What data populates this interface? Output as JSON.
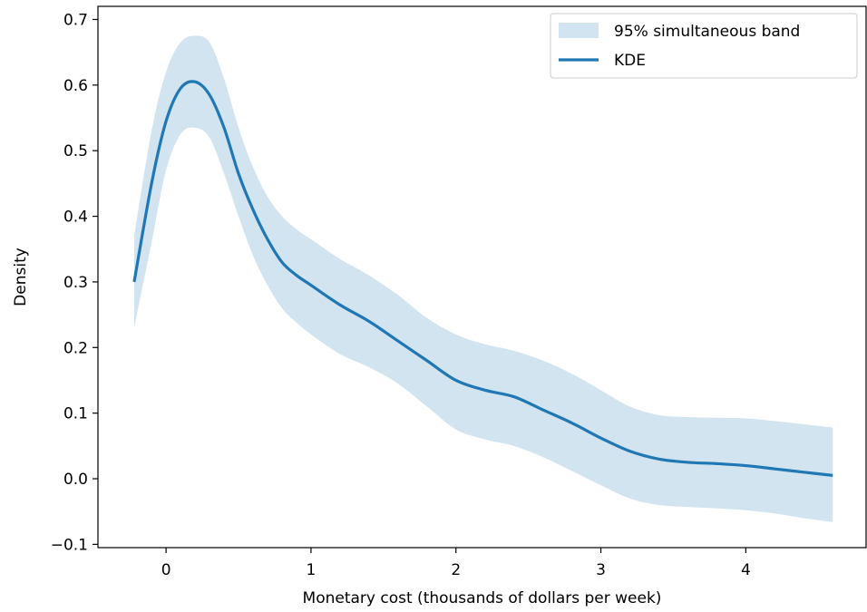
{
  "chart_data": {
    "type": "line",
    "title": "",
    "xlabel": "Monetary cost (thousands of dollars per week)",
    "ylabel": "Density",
    "xlim": [
      -0.47,
      4.83
    ],
    "ylim": [
      -0.105,
      0.72
    ],
    "x_ticks": [
      0,
      1,
      2,
      3,
      4
    ],
    "x_tick_labels": [
      "0",
      "1",
      "2",
      "3",
      "4"
    ],
    "y_ticks": [
      -0.1,
      0.0,
      0.1,
      0.2,
      0.3,
      0.4,
      0.5,
      0.6,
      0.7
    ],
    "y_tick_labels": [
      "−0.1",
      "0.0",
      "0.1",
      "0.2",
      "0.3",
      "0.4",
      "0.5",
      "0.6",
      "0.7"
    ],
    "grid": false,
    "legend_position": "top-right",
    "colors": {
      "line": "#1f77b4",
      "band": "#1f77b4",
      "band_opacity": 0.2
    },
    "series": [
      {
        "name": "KDE",
        "kind": "line",
        "x": [
          -0.22,
          -0.1,
          0.0,
          0.1,
          0.2,
          0.3,
          0.4,
          0.5,
          0.6,
          0.7,
          0.8,
          0.9,
          1.0,
          1.2,
          1.4,
          1.6,
          1.8,
          2.0,
          2.2,
          2.4,
          2.6,
          2.8,
          3.0,
          3.2,
          3.4,
          3.6,
          3.8,
          4.0,
          4.2,
          4.4,
          4.6
        ],
        "y": [
          0.3,
          0.45,
          0.545,
          0.595,
          0.605,
          0.585,
          0.535,
          0.465,
          0.41,
          0.365,
          0.33,
          0.31,
          0.295,
          0.265,
          0.24,
          0.21,
          0.18,
          0.15,
          0.135,
          0.125,
          0.105,
          0.085,
          0.062,
          0.042,
          0.03,
          0.025,
          0.023,
          0.02,
          0.015,
          0.01,
          0.005
        ]
      },
      {
        "name": "95% simultaneous band",
        "kind": "band",
        "x": [
          -0.22,
          -0.1,
          0.0,
          0.1,
          0.2,
          0.3,
          0.4,
          0.5,
          0.6,
          0.7,
          0.8,
          0.9,
          1.0,
          1.2,
          1.4,
          1.6,
          1.8,
          2.0,
          2.2,
          2.4,
          2.6,
          2.8,
          3.0,
          3.2,
          3.4,
          3.6,
          3.8,
          4.0,
          4.2,
          4.4,
          4.6
        ],
        "lower": [
          0.23,
          0.36,
          0.47,
          0.525,
          0.535,
          0.52,
          0.465,
          0.4,
          0.34,
          0.295,
          0.26,
          0.238,
          0.22,
          0.19,
          0.17,
          0.145,
          0.11,
          0.075,
          0.06,
          0.05,
          0.033,
          0.012,
          -0.01,
          -0.03,
          -0.04,
          -0.043,
          -0.045,
          -0.048,
          -0.053,
          -0.06,
          -0.066
        ],
        "upper": [
          0.37,
          0.53,
          0.62,
          0.665,
          0.675,
          0.665,
          0.61,
          0.535,
          0.475,
          0.43,
          0.4,
          0.38,
          0.365,
          0.335,
          0.31,
          0.28,
          0.245,
          0.22,
          0.205,
          0.195,
          0.18,
          0.16,
          0.135,
          0.11,
          0.097,
          0.094,
          0.093,
          0.092,
          0.088,
          0.083,
          0.078
        ]
      }
    ]
  }
}
